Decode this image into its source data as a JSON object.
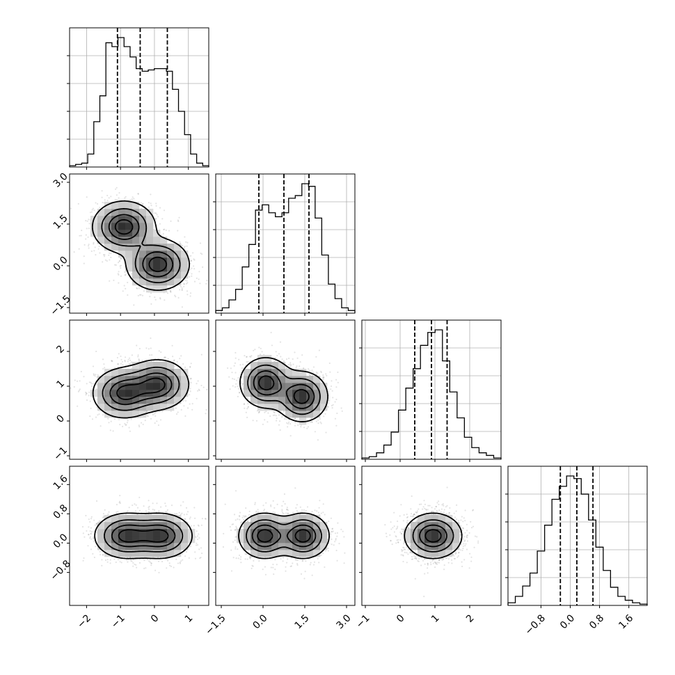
{
  "chart_data": {
    "type": "corner",
    "grid": true,
    "parameters": [
      {
        "range": [
          -2.5,
          1.6
        ],
        "ticks": [
          -2,
          -1,
          0,
          1
        ],
        "tick_labels": [
          "−2",
          "−1",
          "0",
          "1"
        ],
        "quantiles": [
          -1.09,
          -0.42,
          0.38
        ],
        "modes": [
          {
            "mean": -0.9,
            "sd": 0.45,
            "weight": 0.5
          },
          {
            "mean": 0.1,
            "sd": 0.45,
            "weight": 0.5
          }
        ]
      },
      {
        "range": [
          -1.7,
          3.3
        ],
        "ticks": [
          -1.5,
          0.0,
          1.5,
          3.0
        ],
        "tick_labels": [
          "−1.5",
          "0.0",
          "1.5",
          "3.0"
        ],
        "quantiles": [
          -0.15,
          0.75,
          1.65
        ],
        "modes": [
          {
            "mean": 1.5,
            "sd": 0.45,
            "weight": 0.5
          },
          {
            "mean": 0.0,
            "sd": 0.45,
            "weight": 0.5
          }
        ]
      },
      {
        "range": [
          -1.1,
          2.9
        ],
        "ticks": [
          -1,
          0,
          1,
          2
        ],
        "tick_labels": [
          "−1",
          "0",
          "1",
          "2"
        ],
        "quantiles": [
          0.42,
          0.9,
          1.35
        ],
        "modes": [
          {
            "mean": 0.8,
            "sd": 0.35,
            "weight": 0.5
          },
          {
            "mean": 1.05,
            "sd": 0.35,
            "weight": 0.5
          }
        ]
      },
      {
        "range": [
          -1.7,
          2.1
        ],
        "ticks": [
          -0.8,
          0.0,
          0.8,
          1.6
        ],
        "tick_labels": [
          "−0.8",
          "0.0",
          "0.8",
          "1.6"
        ],
        "quantiles": [
          -0.27,
          0.18,
          0.62
        ],
        "modes": [
          {
            "mean": 0.18,
            "sd": 0.32,
            "weight": 1.0
          }
        ]
      }
    ],
    "histograms": [
      [
        0.01,
        0.02,
        0.03,
        0.1,
        0.35,
        0.55,
        0.96,
        0.93,
        1.0,
        0.93,
        0.85,
        0.76,
        0.74,
        0.75,
        0.76,
        0.76,
        0.74,
        0.6,
        0.43,
        0.25,
        0.1,
        0.03,
        0.01
      ],
      [
        0.02,
        0.04,
        0.1,
        0.18,
        0.35,
        0.52,
        0.78,
        0.82,
        0.76,
        0.73,
        0.76,
        0.87,
        0.89,
        0.98,
        0.96,
        0.72,
        0.44,
        0.22,
        0.11,
        0.04,
        0.02
      ],
      [
        0.01,
        0.02,
        0.05,
        0.11,
        0.21,
        0.38,
        0.55,
        0.7,
        0.88,
        0.98,
        1.0,
        0.76,
        0.52,
        0.32,
        0.17,
        0.09,
        0.05,
        0.03,
        0.01
      ],
      [
        0.02,
        0.07,
        0.15,
        0.25,
        0.42,
        0.62,
        0.82,
        0.92,
        1.0,
        0.98,
        0.86,
        0.66,
        0.45,
        0.27,
        0.14,
        0.07,
        0.04,
        0.02,
        0.01
      ]
    ],
    "pairs": [
      {
        "x": 0,
        "y": 1,
        "components": [
          {
            "mean": [
              -0.9,
              1.4
            ],
            "sd": [
              0.45,
              0.45
            ]
          },
          {
            "mean": [
              0.1,
              0.05
            ],
            "sd": [
              0.45,
              0.45
            ]
          }
        ]
      },
      {
        "x": 0,
        "y": 2,
        "components": [
          {
            "mean": [
              -0.9,
              0.8
            ],
            "sd": [
              0.45,
              0.35
            ]
          },
          {
            "mean": [
              0.1,
              1.05
            ],
            "sd": [
              0.45,
              0.35
            ]
          }
        ]
      },
      {
        "x": 1,
        "y": 2,
        "components": [
          {
            "mean": [
              1.4,
              0.7
            ],
            "sd": [
              0.45,
              0.35
            ]
          },
          {
            "mean": [
              0.1,
              1.1
            ],
            "sd": [
              0.45,
              0.35
            ]
          }
        ]
      },
      {
        "x": 0,
        "y": 3,
        "components": [
          {
            "mean": [
              -0.85,
              0.2
            ],
            "sd": [
              0.45,
              0.3
            ]
          },
          {
            "mean": [
              0.2,
              0.2
            ],
            "sd": [
              0.45,
              0.3
            ]
          }
        ]
      },
      {
        "x": 1,
        "y": 3,
        "components": [
          {
            "mean": [
              0.05,
              0.2
            ],
            "sd": [
              0.45,
              0.3
            ]
          },
          {
            "mean": [
              1.45,
              0.2
            ],
            "sd": [
              0.45,
              0.3
            ]
          }
        ]
      },
      {
        "x": 2,
        "y": 3,
        "components": [
          {
            "mean": [
              0.95,
              0.2
            ],
            "sd": [
              0.4,
              0.3
            ]
          }
        ]
      }
    ]
  },
  "colors": {
    "line": "#000000",
    "grid": "#b0b0b0",
    "background": "#ffffff"
  }
}
